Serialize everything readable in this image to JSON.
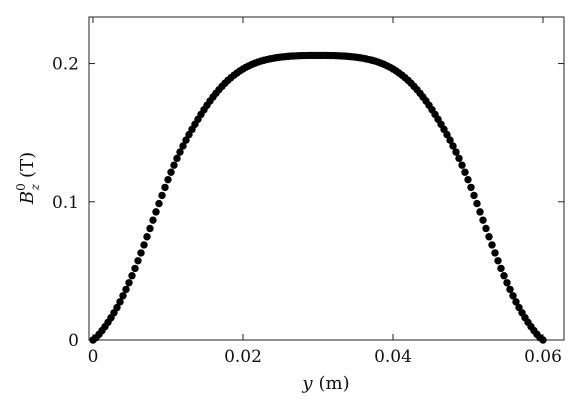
{
  "chart_data": {
    "type": "scatter",
    "xlabel_var": "y",
    "xlabel_unit": "(m)",
    "ylabel_var": "B",
    "ylabel_sub": "z",
    "ylabel_sup": "0",
    "ylabel_unit": "(T)",
    "xlim": [
      0,
      0.06
    ],
    "ylim": [
      0,
      0.225
    ],
    "x_ticks": [
      0,
      0.02,
      0.04,
      0.06
    ],
    "x_tick_labels": [
      "0",
      "0.02",
      "0.04",
      "0.06"
    ],
    "y_ticks": [
      0,
      0.1,
      0.2
    ],
    "y_tick_labels": [
      "0",
      "0.1",
      "0.2"
    ],
    "grid": false,
    "marker_color": "#000000",
    "series": [
      {
        "x": [
          0,
          0.0004,
          0.0008,
          0.0012,
          0.0016,
          0.002,
          0.0024,
          0.0028,
          0.0032,
          0.0036,
          0.004,
          0.0044,
          0.0048,
          0.0052,
          0.0056,
          0.006,
          0.0064,
          0.0068,
          0.0072,
          0.0076,
          0.008,
          0.0084,
          0.0088,
          0.0092,
          0.0096,
          0.01,
          0.0104,
          0.0108,
          0.0112,
          0.0116,
          0.012,
          0.0124,
          0.0128,
          0.0132,
          0.0136,
          0.014,
          0.0144,
          0.0148,
          0.0152,
          0.0156,
          0.016,
          0.0164,
          0.0168,
          0.0172,
          0.0176,
          0.018,
          0.0184,
          0.0188,
          0.0192,
          0.0196,
          0.02,
          0.0204,
          0.0208,
          0.0212,
          0.0216,
          0.022,
          0.0224,
          0.0228,
          0.0232,
          0.0236,
          0.024,
          0.0244,
          0.0248,
          0.0252,
          0.0256,
          0.026,
          0.0264,
          0.0268,
          0.0272,
          0.0276,
          0.028,
          0.0284,
          0.0288,
          0.0292,
          0.0296,
          0.03,
          0.0304,
          0.0308,
          0.0312,
          0.0316,
          0.032,
          0.0324,
          0.0328,
          0.0332,
          0.0336,
          0.034,
          0.0344,
          0.0348,
          0.0352,
          0.0356,
          0.036,
          0.0364,
          0.0368,
          0.0372,
          0.0376,
          0.038,
          0.0384,
          0.0388,
          0.0392,
          0.0396,
          0.04,
          0.0404,
          0.0408,
          0.0412,
          0.0416,
          0.042,
          0.0424,
          0.0428,
          0.0432,
          0.0436,
          0.044,
          0.0444,
          0.0448,
          0.0452,
          0.0456,
          0.046,
          0.0464,
          0.0468,
          0.0472,
          0.0476,
          0.048,
          0.0484,
          0.0488,
          0.0492,
          0.0496,
          0.05,
          0.0504,
          0.0508,
          0.0512,
          0.0516,
          0.052,
          0.0524,
          0.0528,
          0.0532,
          0.0536,
          0.054,
          0.0544,
          0.0548,
          0.0552,
          0.0556,
          0.056,
          0.0564,
          0.0568,
          0.0572,
          0.0576,
          0.058,
          0.0584,
          0.0588,
          0.0592,
          0.0596,
          0.06
        ],
        "y": [
          0.0,
          0.0016,
          0.0041,
          0.0068,
          0.0097,
          0.0128,
          0.0161,
          0.0197,
          0.0235,
          0.0276,
          0.032,
          0.0366,
          0.0414,
          0.0465,
          0.0518,
          0.0573,
          0.063,
          0.0688,
          0.0747,
          0.0807,
          0.0867,
          0.0927,
          0.0987,
          0.1046,
          0.1104,
          0.116,
          0.1214,
          0.1265,
          0.1314,
          0.136,
          0.1404,
          0.1446,
          0.1486,
          0.1524,
          0.1561,
          0.1597,
          0.1632,
          0.1666,
          0.1698,
          0.1729,
          0.1758,
          0.1785,
          0.1811,
          0.1835,
          0.1858,
          0.1879,
          0.1898,
          0.1916,
          0.1932,
          0.1947,
          0.1961,
          0.1973,
          0.1984,
          0.1994,
          0.2003,
          0.2011,
          0.2018,
          0.2024,
          0.2029,
          0.2034,
          0.2038,
          0.2042,
          0.2045,
          0.2048,
          0.205,
          0.2052,
          0.2054,
          0.2055,
          0.2056,
          0.2057,
          0.2058,
          0.2058,
          0.2059,
          0.2059,
          0.2059,
          0.2059,
          0.2059,
          0.2059,
          0.2059,
          0.2058,
          0.2058,
          0.2057,
          0.2056,
          0.2055,
          0.2054,
          0.2052,
          0.205,
          0.2048,
          0.2045,
          0.2042,
          0.2038,
          0.2034,
          0.2029,
          0.2024,
          0.2018,
          0.2011,
          0.2003,
          0.1994,
          0.1984,
          0.1973,
          0.1961,
          0.1947,
          0.1932,
          0.1916,
          0.1898,
          0.1879,
          0.1858,
          0.1835,
          0.1811,
          0.1785,
          0.1758,
          0.1729,
          0.1698,
          0.1666,
          0.1632,
          0.1597,
          0.1561,
          0.1524,
          0.1486,
          0.1446,
          0.1404,
          0.136,
          0.1314,
          0.1265,
          0.1214,
          0.116,
          0.1104,
          0.1046,
          0.0987,
          0.0927,
          0.0867,
          0.0807,
          0.0747,
          0.0688,
          0.063,
          0.0573,
          0.0518,
          0.0465,
          0.0414,
          0.0366,
          0.032,
          0.0276,
          0.0235,
          0.0197,
          0.0161,
          0.0128,
          0.0097,
          0.0068,
          0.0041,
          0.0016,
          0.0
        ]
      }
    ]
  }
}
